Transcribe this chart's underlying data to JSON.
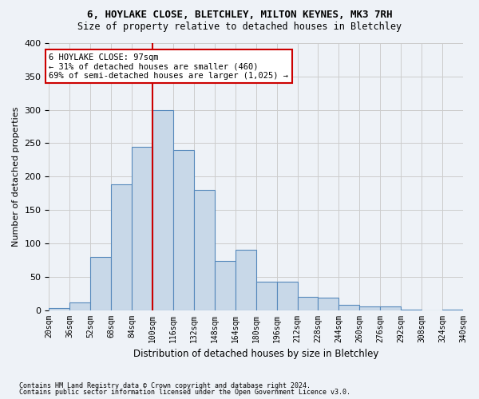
{
  "title1": "6, HOYLAKE CLOSE, BLETCHLEY, MILTON KEYNES, MK3 7RH",
  "title2": "Size of property relative to detached houses in Bletchley",
  "xlabel": "Distribution of detached houses by size in Bletchley",
  "ylabel": "Number of detached properties",
  "footer1": "Contains HM Land Registry data © Crown copyright and database right 2024.",
  "footer2": "Contains public sector information licensed under the Open Government Licence v3.0.",
  "bin_labels": [
    "20sqm",
    "36sqm",
    "52sqm",
    "68sqm",
    "84sqm",
    "100sqm",
    "116sqm",
    "132sqm",
    "148sqm",
    "164sqm",
    "180sqm",
    "196sqm",
    "212sqm",
    "228sqm",
    "244sqm",
    "260sqm",
    "276sqm",
    "292sqm",
    "308sqm",
    "324sqm",
    "340sqm"
  ],
  "bar_values": [
    3,
    12,
    80,
    188,
    245,
    300,
    240,
    180,
    73,
    90,
    43,
    42,
    20,
    19,
    8,
    5,
    5,
    1,
    0,
    1
  ],
  "bar_color": "#c8d8e8",
  "bar_edge_color": "#5588bb",
  "property_bin_edge": 100,
  "vline_color": "#cc0000",
  "annotation_text": "6 HOYLAKE CLOSE: 97sqm\n← 31% of detached houses are smaller (460)\n69% of semi-detached houses are larger (1,025) →",
  "annotation_box_color": "#ffffff",
  "annotation_box_edge": "#cc0000",
  "ylim": [
    0,
    400
  ],
  "yticks": [
    0,
    50,
    100,
    150,
    200,
    250,
    300,
    350,
    400
  ],
  "grid_color": "#cccccc",
  "background_color": "#eef2f7"
}
